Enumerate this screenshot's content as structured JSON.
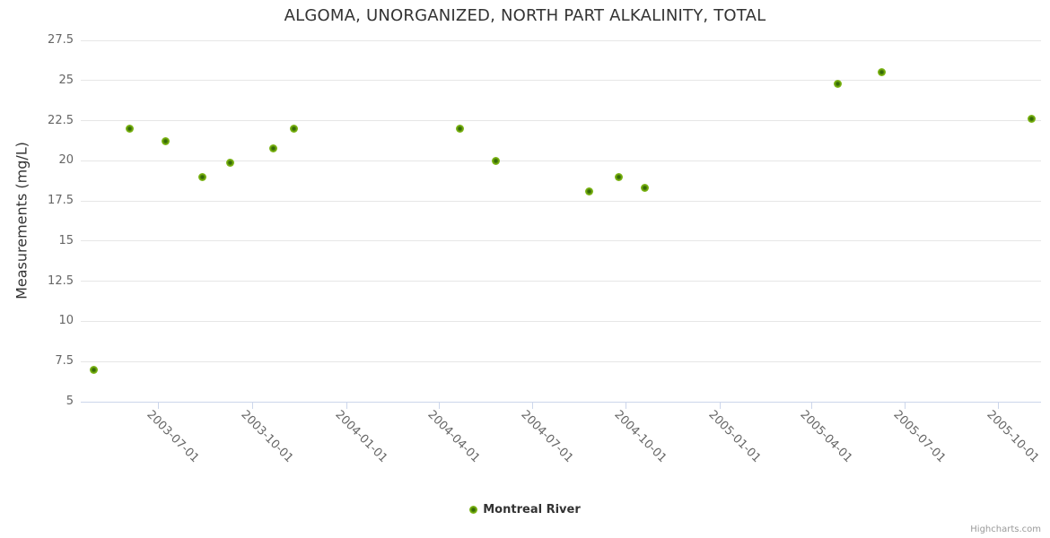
{
  "credits": {
    "text": "Highcharts.com"
  },
  "chart_data": {
    "type": "scatter",
    "title": "ALGOMA, UNORGANIZED, NORTH PART ALKALINITY, TOTAL",
    "xlabel": "",
    "ylabel": "Measurements (mg/L)",
    "ylim": [
      5,
      27.5
    ],
    "y_ticks": [
      5,
      7.5,
      10,
      12.5,
      15,
      17.5,
      20,
      22.5,
      25,
      27.5
    ],
    "x_ticks": [
      "2003-07-01",
      "2003-10-01",
      "2004-01-01",
      "2004-04-01",
      "2004-07-01",
      "2004-10-01",
      "2005-01-01",
      "2005-04-01",
      "2005-07-01",
      "2005-10-01"
    ],
    "x_range": [
      "2003-04-16",
      "2005-11-12"
    ],
    "grid": true,
    "legend_position": "bottom-center",
    "colors": {
      "series": "#74ad0b",
      "series_center": "#2e6309",
      "grid": "#e6e6e6",
      "axis": "#ccd6eb",
      "labels": "#666666",
      "title": "#333333",
      "credits": "#999999"
    },
    "series": [
      {
        "name": "Montreal River",
        "points": [
          {
            "date": "2003-04-29",
            "value": 7.0
          },
          {
            "date": "2003-06-03",
            "value": 22.0
          },
          {
            "date": "2003-07-08",
            "value": 21.2
          },
          {
            "date": "2003-08-13",
            "value": 19.0
          },
          {
            "date": "2003-09-09",
            "value": 19.9
          },
          {
            "date": "2003-10-22",
            "value": 20.8
          },
          {
            "date": "2003-11-11",
            "value": 22.0
          },
          {
            "date": "2004-04-22",
            "value": 22.0
          },
          {
            "date": "2004-05-27",
            "value": 20.0
          },
          {
            "date": "2004-08-26",
            "value": 18.1
          },
          {
            "date": "2004-09-24",
            "value": 19.0
          },
          {
            "date": "2004-10-20",
            "value": 18.3
          },
          {
            "date": "2005-04-27",
            "value": 24.8
          },
          {
            "date": "2005-06-09",
            "value": 25.5
          },
          {
            "date": "2005-11-03",
            "value": 22.6
          }
        ]
      }
    ]
  }
}
